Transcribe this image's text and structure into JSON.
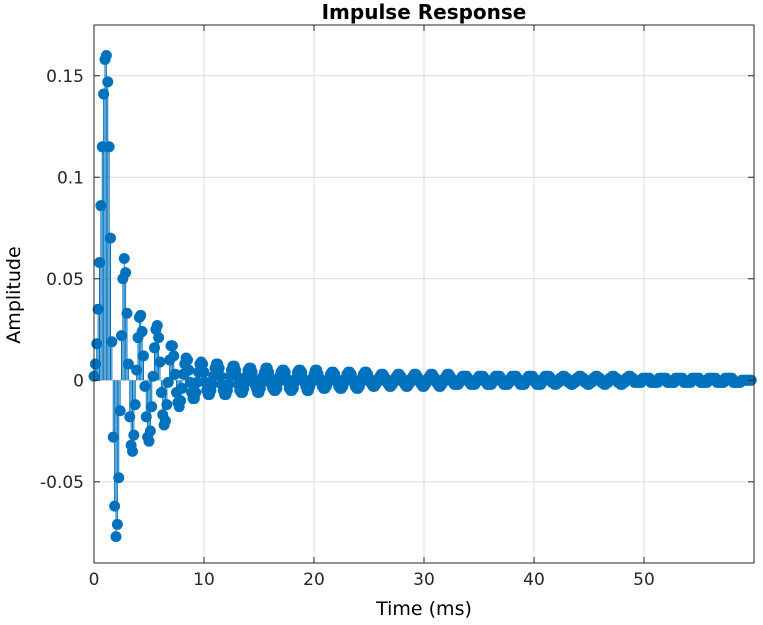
{
  "chart_data": {
    "type": "stem",
    "title": "Impulse Response",
    "xlabel": "Time (ms)",
    "ylabel": "Amplitude",
    "xlim": [
      0,
      60
    ],
    "ylim": [
      -0.09,
      0.175
    ],
    "xticks": [
      0,
      10,
      20,
      30,
      40,
      50
    ],
    "xtick_labels": [
      "0",
      "10",
      "20",
      "30",
      "40",
      "50"
    ],
    "yticks": [
      -0.05,
      0,
      0.05,
      0.1,
      0.15
    ],
    "ytick_labels": [
      "-0.05",
      "0",
      "0.05",
      "0.1",
      "0.15"
    ],
    "grid": true,
    "color": "#0072bd",
    "sample_period_ms": 0.125,
    "series": [
      {
        "values": [
          0.002,
          0.008,
          0.018,
          0.035,
          0.058,
          0.086,
          0.115,
          0.141,
          0.158,
          0.16,
          0.147,
          0.115,
          0.07,
          0.019,
          -0.028,
          -0.062,
          -0.077,
          -0.071,
          -0.048,
          -0.015,
          0.022,
          0.05,
          0.06,
          0.053,
          0.033,
          0.008,
          -0.018,
          -0.032,
          -0.035,
          -0.027,
          -0.012,
          0.005,
          0.021,
          0.031,
          0.032,
          0.024,
          0.012,
          -0.003,
          -0.018,
          -0.028,
          -0.03,
          -0.025,
          -0.013,
          0.002,
          0.016,
          0.025,
          0.027,
          0.021,
          0.009,
          -0.006,
          -0.017,
          -0.022,
          -0.02,
          -0.012,
          -0.001,
          0.01,
          0.017,
          0.017,
          0.012,
          0.003,
          -0.006,
          -0.011,
          -0.013,
          -0.01,
          -0.004,
          0.003,
          0.008,
          0.011,
          0.01,
          0.005,
          -0.001,
          -0.006,
          -0.009,
          -0.009,
          -0.006,
          -0.001,
          0.004,
          0.008,
          0.009,
          0.008,
          0.004,
          -0.001,
          -0.005,
          -0.007,
          -0.007,
          -0.005,
          -0.002,
          0.002,
          0.006,
          0.008,
          0.008,
          0.006,
          0.002,
          -0.002,
          -0.005,
          -0.007,
          -0.007,
          -0.005,
          -0.002,
          0.002,
          0.005,
          0.007,
          0.007,
          0.005,
          0.002,
          -0.002,
          -0.005,
          -0.006,
          -0.006,
          -0.004,
          -0.001,
          0.002,
          0.005,
          0.006,
          0.006,
          0.004,
          0.001,
          -0.002,
          -0.004,
          -0.006,
          -0.006,
          -0.004,
          -0.001,
          0.002,
          0.004,
          0.006,
          0.006,
          0.004,
          0.001,
          -0.002,
          -0.004,
          -0.005,
          -0.005,
          -0.004,
          -0.001,
          0.002,
          0.004,
          0.005,
          0.005,
          0.004,
          0.001,
          -0.001,
          -0.004,
          -0.005,
          -0.005,
          -0.004,
          -0.001,
          0.001,
          0.004,
          0.005,
          0.005,
          0.004,
          0.001,
          -0.001,
          -0.003,
          -0.005,
          -0.005,
          -0.003,
          -0.001,
          0.001,
          0.003,
          0.005,
          0.005,
          0.003,
          0.001,
          -0.001,
          -0.003,
          -0.004,
          -0.004,
          -0.003,
          -0.001,
          0.001,
          0.003,
          0.004,
          0.004,
          0.003,
          0.001,
          -0.001,
          -0.003,
          -0.004,
          -0.004,
          -0.003,
          -0.001,
          0.001,
          0.003,
          0.004,
          0.004,
          0.003,
          0.001,
          -0.001,
          -0.003,
          -0.004,
          -0.004,
          -0.003,
          -0.001,
          0.001,
          0.003,
          0.004,
          0.004,
          0.003,
          0.001,
          -0.001,
          -0.002,
          -0.003,
          -0.003,
          -0.002,
          -0.001,
          0.001,
          0.002,
          0.003,
          0.003,
          0.002,
          0.001,
          -0.001,
          -0.002,
          -0.003,
          -0.003,
          -0.002,
          -0.001,
          0.001,
          0.002,
          0.003,
          0.003,
          0.002,
          0.001,
          -0.001,
          -0.002,
          -0.003,
          -0.003,
          -0.002,
          -0.001,
          0.001,
          0.002,
          0.003,
          0.003,
          0.002,
          0.001,
          -0.001,
          -0.002,
          -0.003,
          -0.003,
          -0.002,
          -0.001,
          0.001,
          0.002,
          0.003,
          0.003,
          0.002,
          0.001,
          -0.001,
          -0.002,
          -0.003,
          -0.003,
          -0.002,
          -0.001,
          0.001,
          0.002,
          0.003,
          0.003,
          0.002,
          0.001,
          -0.001,
          -0.002,
          -0.002,
          -0.002,
          -0.002,
          -0.001,
          0.001,
          0.002,
          0.002,
          0.002,
          0.002,
          0.001,
          -0.001,
          -0.002,
          -0.002,
          -0.002,
          -0.002,
          -0.001,
          0.001,
          0.002,
          0.002,
          0.002,
          0.002,
          0.001,
          -0.001,
          -0.002,
          -0.002,
          -0.002,
          -0.002,
          -0.001,
          0.001,
          0.002,
          0.002,
          0.002,
          0.002,
          0.001,
          -0.001,
          -0.002,
          -0.002,
          -0.002,
          -0.002,
          -0.001,
          0.001,
          0.002,
          0.002,
          0.002,
          0.002,
          0.001,
          -0.001,
          -0.002,
          -0.002,
          -0.002,
          -0.002,
          -0.001,
          0.001,
          0.002,
          0.002,
          0.002,
          0.002,
          0.001,
          -0.001,
          -0.002,
          -0.002,
          -0.002,
          -0.002,
          -0.001,
          0.001,
          0.002,
          0.002,
          0.002,
          0.002,
          0.001,
          -0.001,
          -0.001,
          -0.002,
          -0.002,
          -0.001,
          -0.001,
          0.001,
          0.001,
          0.002,
          0.002,
          0.001,
          0.001,
          -0.001,
          -0.001,
          -0.002,
          -0.002,
          -0.001,
          -0.001,
          0.001,
          0.001,
          0.002,
          0.002,
          0.001,
          0.001,
          -0.001,
          -0.001,
          -0.002,
          -0.002,
          -0.001,
          -0.001,
          0.001,
          0.001,
          0.002,
          0.002,
          0.001,
          0.001,
          -0.001,
          -0.001,
          -0.002,
          -0.002,
          -0.001,
          -0.001,
          0.001,
          0.001,
          0.002,
          0.002,
          0.001,
          0.001,
          -0.001,
          -0.001,
          -0.002,
          -0.002,
          -0.001,
          -0.001,
          0.001,
          0.001,
          0.002,
          0.002,
          0.001,
          0.001,
          -0.001,
          -0.001,
          -0.001,
          -0.001,
          -0.001,
          -0.001,
          0.001,
          0.001,
          0.001,
          0.001,
          0.001,
          0.001,
          -0.001,
          -0.001,
          -0.001,
          -0.001,
          -0.001,
          -0.001,
          0.001,
          0.001,
          0.001,
          0.001,
          0.001,
          0.001,
          -0.001,
          -0.001,
          -0.001,
          -0.001,
          -0.001,
          -0.001,
          0.001,
          0.001,
          0.001,
          0.001,
          0.001,
          0.001,
          -0.001,
          -0.001,
          -0.001,
          -0.001,
          -0.001,
          -0.001,
          0.001,
          0.001,
          0.001,
          0.001,
          0.001,
          0.001,
          -0.001,
          -0.001,
          -0.001,
          -0.001,
          -0.001,
          -0.001,
          0.001,
          0.001,
          0.001,
          0.001,
          0.001,
          0.001,
          -0.001,
          -0.001,
          -0.001,
          -0.001,
          -0.001,
          -0.001,
          0.001,
          0.001,
          0.001,
          0.001,
          0.001,
          0.001,
          -0.001,
          -0.001,
          -0.001,
          -0.001,
          -0.001,
          -0.001,
          0,
          0,
          0,
          0,
          0,
          0,
          0,
          0
        ]
      }
    ]
  }
}
